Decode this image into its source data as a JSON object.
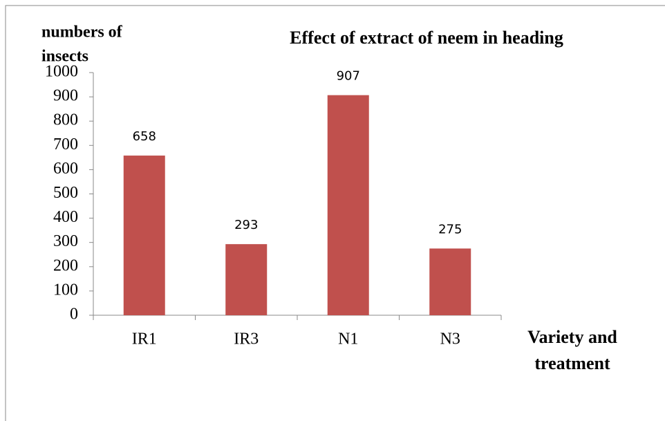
{
  "chart_data": {
    "type": "bar",
    "title": "Effect of extract of neem in heading",
    "y_label": [
      "numbers  of",
      "insects"
    ],
    "x_label": [
      "Variety and",
      "treatment"
    ],
    "categories": [
      "IR1",
      "IR3",
      "N1",
      "N3"
    ],
    "values": [
      658,
      293,
      907,
      275
    ],
    "color": "#c0504d",
    "ylim": [
      0,
      1000
    ],
    "yticks": [
      0,
      100,
      200,
      300,
      400,
      500,
      600,
      700,
      800,
      900,
      1000
    ],
    "grid": false,
    "data_labels": true
  }
}
